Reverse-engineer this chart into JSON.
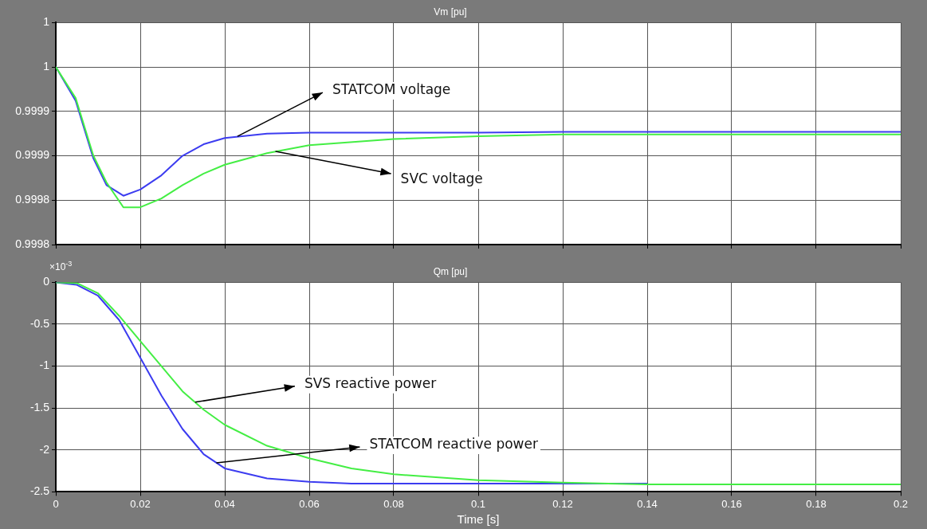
{
  "chart_data": [
    {
      "type": "line",
      "title": "Vm [pu]",
      "x": [
        0,
        0.0047,
        0.0089,
        0.012,
        0.016,
        0.02,
        0.025,
        0.03,
        0.035,
        0.04,
        0.05,
        0.06,
        0.08,
        0.1,
        0.12,
        0.2
      ],
      "series": [
        {
          "name": null,
          "color": "#44ee44",
          "values": [
            0.99995,
            0.999915,
            0.99985,
            0.99982,
            0.999792,
            0.999792,
            0.999802,
            0.999817,
            0.99983,
            0.99984,
            0.999853,
            0.999862,
            0.999869,
            0.999872,
            0.999874,
            0.999874
          ]
        },
        {
          "name": null,
          "color": "#3c3cf0",
          "values": [
            0.99995,
            0.999912,
            0.999847,
            0.999817,
            0.999805,
            0.999812,
            0.999828,
            0.99985,
            0.999863,
            0.99987,
            0.999875,
            0.999876,
            0.999876,
            0.999876,
            0.999877,
            0.999877
          ]
        }
      ],
      "xlim": [
        0,
        0.2
      ],
      "xticks": [
        0,
        0.02,
        0.04,
        0.06,
        0.08,
        0.1,
        0.12,
        0.14,
        0.16,
        0.18,
        0.2
      ],
      "ylim": [
        0.99975,
        1.0
      ],
      "yticks": [
        {
          "value": 0.99975,
          "label": "0.9998"
        },
        {
          "value": 0.9998,
          "label": "0.9998"
        },
        {
          "value": 0.99985,
          "label": "0.9999"
        },
        {
          "value": 0.9999,
          "label": "0.9999"
        },
        {
          "value": 0.99995,
          "label": "1"
        },
        {
          "value": 1.0,
          "label": "1"
        }
      ],
      "tick_labels": "y",
      "grid": true,
      "legend": false,
      "marker": "none",
      "line_style": "solid",
      "annotations": [
        {
          "text": "STATCOM voltage",
          "x": 0.043,
          "y": 0.999872
        },
        {
          "text": "SVC voltage",
          "x": 0.052,
          "y": 0.999855
        }
      ]
    },
    {
      "type": "line",
      "title": "Qm [pu]",
      "xlabel": "Time [s]",
      "x": [
        0,
        0.005,
        0.01,
        0.015,
        0.02,
        0.025,
        0.03,
        0.035,
        0.04,
        0.05,
        0.06,
        0.07,
        0.08,
        0.1,
        0.12,
        0.14,
        0.2
      ],
      "series": [
        {
          "name": null,
          "color": "#44ee44",
          "values": [
            0,
            -0.01,
            -0.13,
            -0.4,
            -0.7,
            -1.0,
            -1.3,
            -1.52,
            -1.7,
            -1.95,
            -2.1,
            -2.22,
            -2.29,
            -2.36,
            -2.39,
            -2.41,
            -2.41
          ]
        },
        {
          "name": null,
          "color": "#3c3cf0",
          "x": [
            0,
            0.005,
            0.01,
            0.015,
            0.02,
            0.025,
            0.03,
            0.035,
            0.04,
            0.05,
            0.06,
            0.07,
            0.08,
            0.1,
            0.12,
            0.14
          ],
          "values": [
            0,
            -0.03,
            -0.16,
            -0.45,
            -0.9,
            -1.35,
            -1.75,
            -2.05,
            -2.22,
            -2.34,
            -2.38,
            -2.4,
            -2.4,
            -2.4,
            -2.4,
            -2.4
          ]
        }
      ],
      "xlim": [
        0,
        0.2
      ],
      "xticks": [
        0,
        0.02,
        0.04,
        0.06,
        0.08,
        0.1,
        0.12,
        0.14,
        0.16,
        0.18,
        0.2
      ],
      "ylim": [
        -2.5,
        0
      ],
      "yticks": [
        -2.5,
        -2,
        -1.5,
        -1,
        -0.5,
        0
      ],
      "grid": true,
      "legend": false,
      "marker": "none",
      "line_style": "solid",
      "annotations": [
        "×10$^{-3}$",
        {
          "text": "SVS reactive power",
          "x": 0.033,
          "y": -1.43
        },
        {
          "text": "STATCOM reactive power",
          "x": 0.038,
          "y": -2.154
        }
      ]
    }
  ]
}
